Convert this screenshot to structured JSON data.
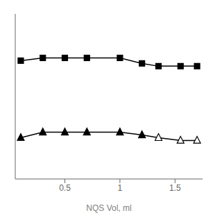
{
  "chart_data": {
    "type": "line",
    "xlabel": "NQS Vol, ml",
    "x": [
      0.1,
      0.3,
      0.5,
      0.7,
      1.0,
      1.2,
      1.35,
      1.55,
      1.7
    ],
    "series": [
      {
        "color": "black",
        "marker": "square",
        "values": [
          0.88,
          0.89,
          0.89,
          0.89,
          0.89,
          0.87,
          0.86,
          0.86,
          0.86
        ]
      },
      {
        "color": "black",
        "marker": "triangle",
        "colors": [
          "black",
          "black",
          "black",
          "black",
          "black",
          "black",
          "white",
          "white",
          "white"
        ],
        "values": [
          0.6,
          0.62,
          0.62,
          0.62,
          0.62,
          0.61,
          0.6,
          0.59,
          0.59
        ]
      }
    ],
    "xlim": [
      0.05,
      1.75
    ],
    "xticks": [
      0.5,
      1,
      1.5
    ],
    "ylim": [
      0.45,
      1.05
    ],
    "grid": false,
    "tick_labels": "x"
  }
}
